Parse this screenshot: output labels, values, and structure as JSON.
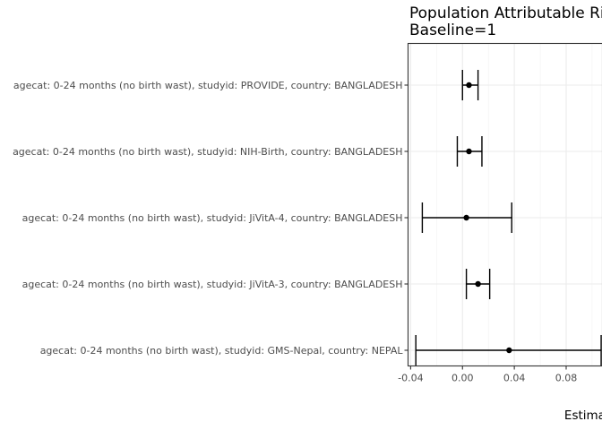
{
  "chart_data": {
    "type": "forest",
    "title": "Population Attributable Risk",
    "subtitle": "Baseline=1",
    "xlabel": "Estimate",
    "ylabel": "",
    "xlim": [
      -0.042,
      0.108
    ],
    "xticks": [
      -0.04,
      0.0,
      0.04,
      0.08
    ],
    "xtick_labels": [
      "-0.04",
      "0.00",
      "0.04",
      "0.08"
    ],
    "grid": true,
    "rows": [
      {
        "label": "agecat: 0-24 months (no birth wast), studyid: PROVIDE, country: BANGLADESH",
        "estimate": 0.005,
        "lower": 0.0,
        "upper": 0.012
      },
      {
        "label": "agecat: 0-24 months (no birth wast), studyid: NIH-Birth, country: BANGLADESH",
        "estimate": 0.005,
        "lower": -0.004,
        "upper": 0.015
      },
      {
        "label": "agecat: 0-24 months (no birth wast), studyid: JiVitA-4, country: BANGLADESH",
        "estimate": 0.003,
        "lower": -0.031,
        "upper": 0.038
      },
      {
        "label": "agecat: 0-24 months (no birth wast), studyid: JiVitA-3, country: BANGLADESH",
        "estimate": 0.012,
        "lower": 0.003,
        "upper": 0.021
      },
      {
        "label": "agecat: 0-24 months (no birth wast), studyid: GMS-Nepal, country: NEPAL",
        "estimate": 0.036,
        "lower": -0.036,
        "upper": 0.107
      }
    ]
  }
}
